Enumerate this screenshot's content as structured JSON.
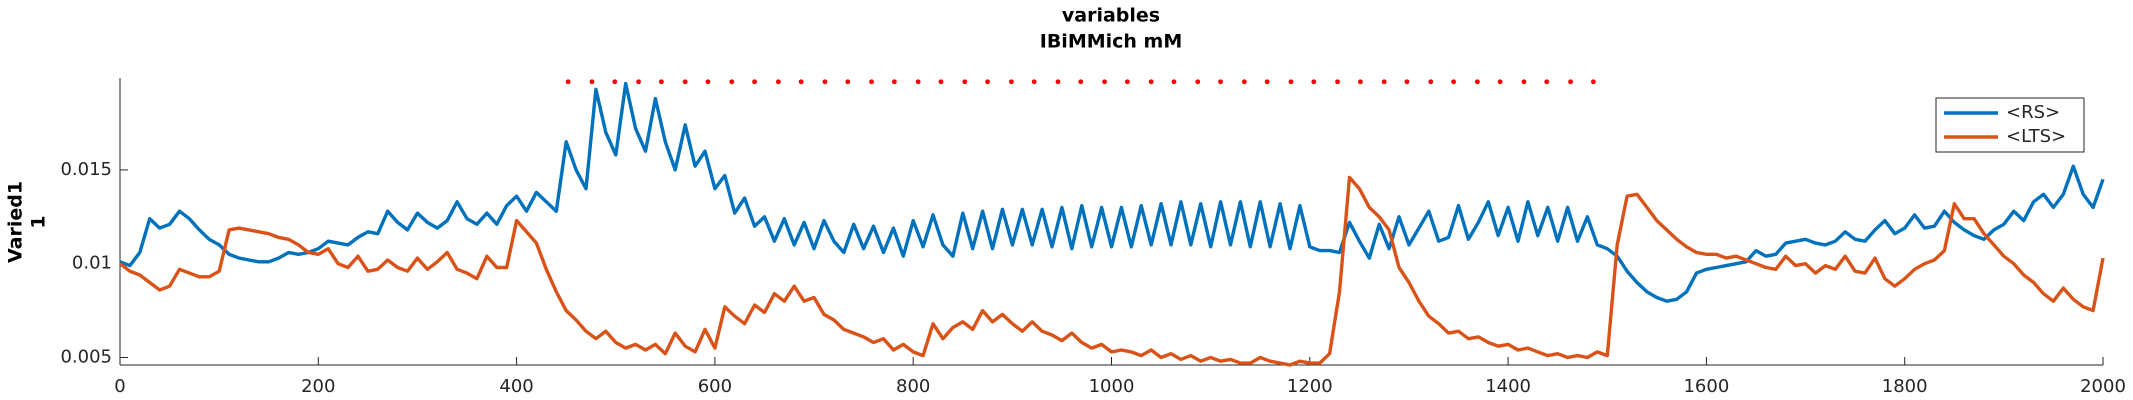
{
  "chart_data": {
    "type": "line",
    "title": [
      "variables",
      "IBiMMich mM"
    ],
    "ylabel": [
      "Varied1",
      "1"
    ],
    "x": [
      0,
      10,
      20,
      30,
      40,
      50,
      60,
      70,
      80,
      90,
      100,
      110,
      120,
      130,
      140,
      150,
      160,
      170,
      180,
      190,
      200,
      210,
      220,
      230,
      240,
      250,
      260,
      270,
      280,
      290,
      300,
      310,
      320,
      330,
      340,
      350,
      360,
      370,
      380,
      390,
      400,
      410,
      420,
      430,
      440,
      450,
      460,
      470,
      480,
      490,
      500,
      510,
      520,
      530,
      540,
      550,
      560,
      570,
      580,
      590,
      600,
      610,
      620,
      630,
      640,
      650,
      660,
      670,
      680,
      690,
      700,
      710,
      720,
      730,
      740,
      750,
      760,
      770,
      780,
      790,
      800,
      810,
      820,
      830,
      840,
      850,
      860,
      870,
      880,
      890,
      900,
      910,
      920,
      930,
      940,
      950,
      960,
      970,
      980,
      990,
      1000,
      1010,
      1020,
      1030,
      1040,
      1050,
      1060,
      1070,
      1080,
      1090,
      1100,
      1110,
      1120,
      1130,
      1140,
      1150,
      1160,
      1170,
      1180,
      1190,
      1200,
      1210,
      1220,
      1230,
      1240,
      1250,
      1260,
      1270,
      1280,
      1290,
      1300,
      1310,
      1320,
      1330,
      1340,
      1350,
      1360,
      1370,
      1380,
      1390,
      1400,
      1410,
      1420,
      1430,
      1440,
      1450,
      1460,
      1470,
      1480,
      1490,
      1500,
      1510,
      1520,
      1530,
      1540,
      1550,
      1560,
      1570,
      1580,
      1590,
      1600,
      1610,
      1620,
      1630,
      1640,
      1650,
      1660,
      1670,
      1680,
      1690,
      1700,
      1710,
      1720,
      1730,
      1740,
      1750,
      1760,
      1770,
      1780,
      1790,
      1800,
      1810,
      1820,
      1830,
      1840,
      1850,
      1860,
      1870,
      1880,
      1890,
      1900,
      1910,
      1920,
      1930,
      1940,
      1950,
      1960,
      1970,
      1980,
      1990,
      2000
    ],
    "series": [
      {
        "name": "<RS>",
        "color": "#0072bd",
        "values": [
          0.0101,
          0.0099,
          0.0106,
          0.0124,
          0.0119,
          0.0121,
          0.0128,
          0.0124,
          0.0118,
          0.0113,
          0.011,
          0.0105,
          0.0103,
          0.0102,
          0.0101,
          0.0101,
          0.0103,
          0.0106,
          0.0105,
          0.0106,
          0.0108,
          0.0112,
          0.0111,
          0.011,
          0.0114,
          0.0117,
          0.0116,
          0.0128,
          0.0122,
          0.0118,
          0.0127,
          0.0122,
          0.0119,
          0.0123,
          0.0133,
          0.0124,
          0.0121,
          0.0127,
          0.0121,
          0.0131,
          0.0136,
          0.0128,
          0.0138,
          0.0133,
          0.0128,
          0.0165,
          0.015,
          0.014,
          0.0193,
          0.017,
          0.0158,
          0.0196,
          0.0172,
          0.016,
          0.0188,
          0.0165,
          0.015,
          0.0174,
          0.0152,
          0.016,
          0.014,
          0.0147,
          0.0127,
          0.0135,
          0.012,
          0.0125,
          0.0112,
          0.0124,
          0.011,
          0.0122,
          0.0108,
          0.0123,
          0.0112,
          0.0106,
          0.0121,
          0.0108,
          0.012,
          0.0106,
          0.0119,
          0.0104,
          0.0123,
          0.0109,
          0.0126,
          0.011,
          0.0104,
          0.0127,
          0.0108,
          0.0128,
          0.0108,
          0.0129,
          0.011,
          0.0129,
          0.011,
          0.0129,
          0.0109,
          0.013,
          0.0108,
          0.0131,
          0.0109,
          0.013,
          0.0109,
          0.013,
          0.0109,
          0.0131,
          0.011,
          0.0132,
          0.011,
          0.0133,
          0.011,
          0.0132,
          0.0109,
          0.0133,
          0.011,
          0.0133,
          0.0109,
          0.0133,
          0.0109,
          0.0132,
          0.0108,
          0.0131,
          0.0109,
          0.0107,
          0.0107,
          0.0106,
          0.0122,
          0.0112,
          0.0103,
          0.0121,
          0.0108,
          0.0125,
          0.011,
          0.0119,
          0.0128,
          0.0112,
          0.0114,
          0.0131,
          0.0113,
          0.0122,
          0.0133,
          0.0115,
          0.013,
          0.0112,
          0.0133,
          0.0115,
          0.013,
          0.0112,
          0.013,
          0.0112,
          0.0125,
          0.011,
          0.0108,
          0.0104,
          0.0096,
          0.009,
          0.0085,
          0.0082,
          0.008,
          0.0081,
          0.0085,
          0.0095,
          0.0097,
          0.0098,
          0.0099,
          0.01,
          0.0101,
          0.0107,
          0.0104,
          0.0105,
          0.0111,
          0.0112,
          0.0113,
          0.0111,
          0.011,
          0.0112,
          0.0117,
          0.0113,
          0.0112,
          0.0118,
          0.0123,
          0.0116,
          0.0119,
          0.0126,
          0.0119,
          0.012,
          0.0128,
          0.0122,
          0.0118,
          0.0115,
          0.0113,
          0.0118,
          0.0121,
          0.0128,
          0.0123,
          0.0133,
          0.0137,
          0.013,
          0.0137,
          0.0152,
          0.0137,
          0.013,
          0.0145
        ]
      },
      {
        "name": "<LTS>",
        "color": "#d95319",
        "values": [
          0.01,
          0.0096,
          0.0094,
          0.009,
          0.0086,
          0.0088,
          0.0097,
          0.0095,
          0.0093,
          0.0093,
          0.0096,
          0.0118,
          0.0119,
          0.0118,
          0.0117,
          0.0116,
          0.0114,
          0.0113,
          0.011,
          0.0106,
          0.0105,
          0.0108,
          0.01,
          0.0098,
          0.0104,
          0.0096,
          0.0097,
          0.0102,
          0.0098,
          0.0096,
          0.0103,
          0.0097,
          0.0101,
          0.0106,
          0.0097,
          0.0095,
          0.0092,
          0.0104,
          0.0098,
          0.0098,
          0.0123,
          0.0117,
          0.0111,
          0.0097,
          0.0085,
          0.0075,
          0.007,
          0.0064,
          0.006,
          0.0064,
          0.0058,
          0.0055,
          0.0057,
          0.0054,
          0.0057,
          0.0052,
          0.0063,
          0.0056,
          0.0053,
          0.0065,
          0.0055,
          0.0077,
          0.0072,
          0.0068,
          0.0078,
          0.0074,
          0.0084,
          0.008,
          0.0088,
          0.008,
          0.0082,
          0.0073,
          0.007,
          0.0065,
          0.0063,
          0.0061,
          0.0058,
          0.006,
          0.0054,
          0.0057,
          0.0053,
          0.0051,
          0.0068,
          0.006,
          0.0066,
          0.0069,
          0.0065,
          0.0075,
          0.0069,
          0.0073,
          0.0068,
          0.0064,
          0.0069,
          0.0064,
          0.0062,
          0.0059,
          0.0063,
          0.0058,
          0.0055,
          0.0057,
          0.0053,
          0.0054,
          0.0053,
          0.0051,
          0.0054,
          0.005,
          0.0052,
          0.0049,
          0.0051,
          0.0048,
          0.005,
          0.0048,
          0.0049,
          0.0047,
          0.0047,
          0.005,
          0.0048,
          0.0047,
          0.0046,
          0.0048,
          0.0047,
          0.0047,
          0.0052,
          0.0085,
          0.0146,
          0.014,
          0.013,
          0.0125,
          0.0118,
          0.0098,
          0.009,
          0.008,
          0.0072,
          0.0068,
          0.0063,
          0.0064,
          0.006,
          0.0061,
          0.0058,
          0.0056,
          0.0057,
          0.0054,
          0.0055,
          0.0053,
          0.0051,
          0.0052,
          0.005,
          0.0051,
          0.005,
          0.0053,
          0.0051,
          0.011,
          0.0136,
          0.0137,
          0.013,
          0.0123,
          0.0118,
          0.0113,
          0.0109,
          0.0106,
          0.0105,
          0.0105,
          0.0103,
          0.0104,
          0.0102,
          0.01,
          0.0098,
          0.0097,
          0.0104,
          0.0099,
          0.01,
          0.0095,
          0.0099,
          0.0097,
          0.0104,
          0.0096,
          0.0095,
          0.0103,
          0.0092,
          0.0088,
          0.0092,
          0.0097,
          0.01,
          0.0102,
          0.0107,
          0.0132,
          0.0124,
          0.0124,
          0.0116,
          0.011,
          0.0104,
          0.01,
          0.0094,
          0.009,
          0.0084,
          0.008,
          0.0087,
          0.0081,
          0.0077,
          0.0075,
          0.0103
        ]
      }
    ],
    "markers": {
      "color": "#ff0000",
      "x": [
        452,
        476,
        499,
        523,
        546,
        570,
        593,
        617,
        640,
        664,
        687,
        711,
        734,
        758,
        781,
        805,
        828,
        852,
        875,
        899,
        922,
        946,
        969,
        993,
        1016,
        1040,
        1063,
        1087,
        1110,
        1134,
        1157,
        1181,
        1204,
        1228,
        1251,
        1275,
        1298,
        1322,
        1345,
        1369,
        1392,
        1416,
        1439,
        1463,
        1486
      ],
      "values": [
        0.0197,
        0.0197,
        0.0197,
        0.0197,
        0.0197,
        0.0197,
        0.0197,
        0.0197,
        0.0197,
        0.0197,
        0.0197,
        0.0197,
        0.0197,
        0.0197,
        0.0197,
        0.0197,
        0.0197,
        0.0197,
        0.0197,
        0.0197,
        0.0197,
        0.0197,
        0.0197,
        0.0197,
        0.0197,
        0.0197,
        0.0197,
        0.0197,
        0.0197,
        0.0197,
        0.0197,
        0.0197,
        0.0197,
        0.0197,
        0.0197,
        0.0197,
        0.0197,
        0.0197,
        0.0197,
        0.0197,
        0.0197,
        0.0197,
        0.0197,
        0.0197,
        0.0197
      ]
    },
    "xlim": [
      0,
      2000
    ],
    "xticks": [
      0,
      200,
      400,
      600,
      800,
      1000,
      1200,
      1400,
      1600,
      1800,
      2000
    ],
    "ylim": [
      0.0046,
      0.0199
    ],
    "yticks": [
      0.005,
      0.01,
      0.015
    ],
    "legend": "top-right"
  }
}
